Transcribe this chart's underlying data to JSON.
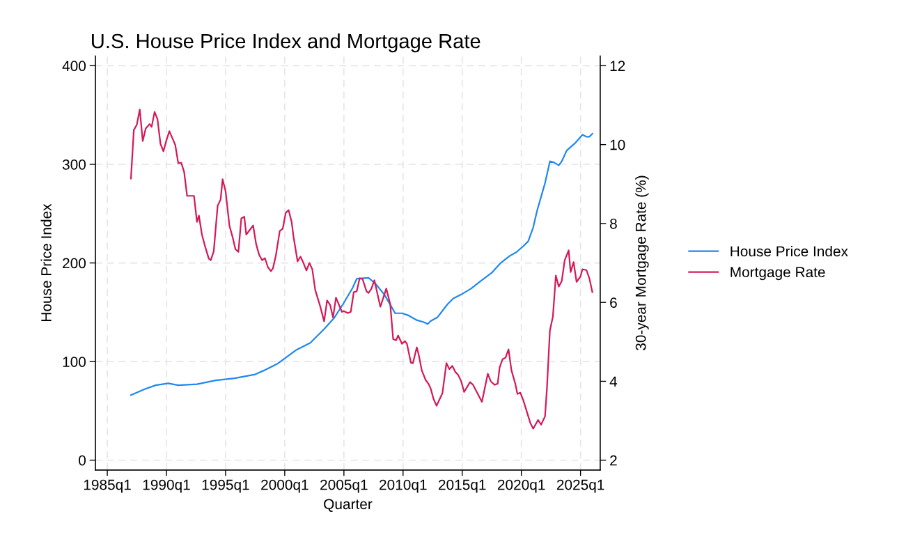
{
  "chart_data": {
    "type": "line",
    "title": "U.S. House Price Index and Mortgage Rate",
    "xlabel": "Quarter",
    "ylabel": "House Price Index",
    "y2label": "30-year Mortgage Rate (%)",
    "xlim": [
      "1984-01",
      "2026-09"
    ],
    "xticks": [
      {
        "value": "1985-01",
        "label": "1985q1"
      },
      {
        "value": "1990-01",
        "label": "1990q1"
      },
      {
        "value": "1995-01",
        "label": "1995q1"
      },
      {
        "value": "2000-01",
        "label": "2000q1"
      },
      {
        "value": "2005-01",
        "label": "2005q1"
      },
      {
        "value": "2010-01",
        "label": "2010q1"
      },
      {
        "value": "2015-01",
        "label": "2015q1"
      },
      {
        "value": "2020-01",
        "label": "2020q1"
      },
      {
        "value": "2025-01",
        "label": "2025q1"
      }
    ],
    "ylim": [
      -10,
      410
    ],
    "yticks": [
      0,
      100,
      200,
      300,
      400
    ],
    "y2lim": [
      1.75,
      12.25
    ],
    "y2ticks": [
      2,
      4,
      6,
      8,
      10,
      12
    ],
    "grid": true,
    "legend": "right",
    "line_style": "solid",
    "marker": "none",
    "series": [
      {
        "name": "House Price Index",
        "color": "#1e88f0",
        "x": [
          "1987-01",
          "1988-03",
          "1989-02",
          "1990-03",
          "1991-01",
          "1992-08",
          "1994-03",
          "1995-10",
          "1997-07",
          "1998-04",
          "1999-06",
          "2001-01",
          "2002-03",
          "2003-05",
          "2004-03",
          "2004-12",
          "2005-10",
          "2006-02",
          "2007-02",
          "2007-09",
          "2008-06",
          "2009-01",
          "2009-05",
          "2009-12",
          "2010-06",
          "2011-03",
          "2011-10",
          "2012-02",
          "2012-05",
          "2012-12",
          "2013-10",
          "2014-04",
          "2014-12",
          "2015-10",
          "2016-07",
          "2017-07",
          "2018-04",
          "2019-01",
          "2019-08",
          "2020-03",
          "2020-08",
          "2021-01",
          "2021-05",
          "2022-01",
          "2022-06",
          "2022-10",
          "2023-03",
          "2023-06",
          "2023-11",
          "2024-08",
          "2025-03",
          "2025-07",
          "2025-10",
          "2026-01"
        ],
        "values": [
          66,
          72,
          76,
          78,
          76,
          77,
          81,
          83,
          87,
          91,
          98,
          112,
          119,
          133,
          144,
          158,
          175,
          184,
          185,
          179,
          168,
          156,
          149,
          149,
          147,
          142,
          140,
          138,
          141,
          145,
          158,
          164,
          168,
          174,
          181,
          190,
          200,
          207,
          211,
          217,
          222,
          236,
          253,
          281,
          303,
          302,
          299,
          303,
          314,
          322,
          330,
          328,
          328,
          331
        ]
      },
      {
        "name": "Mortgage Rate",
        "color": "#d41a56",
        "axis": "y2",
        "x": [
          "1987-01",
          "1987-04",
          "1987-07",
          "1987-10",
          "1988-01",
          "1988-04",
          "1988-08",
          "1988-10",
          "1989-01",
          "1989-04",
          "1989-07",
          "1989-10",
          "1990-01",
          "1990-04",
          "1990-08",
          "1990-10",
          "1991-01",
          "1991-04",
          "1991-07",
          "1991-10",
          "1992-05",
          "1992-08",
          "1992-10",
          "1993-01",
          "1993-04",
          "1993-08",
          "1993-10",
          "1994-01",
          "1994-05",
          "1994-08",
          "1994-10",
          "1995-01",
          "1995-05",
          "1995-08",
          "1995-11",
          "1996-02",
          "1996-05",
          "1996-08",
          "1996-10",
          "1997-05",
          "1997-08",
          "1997-11",
          "1998-02",
          "1998-05",
          "1998-08",
          "1998-11",
          "1999-01",
          "1999-04",
          "1999-08",
          "1999-11",
          "2000-02",
          "2000-05",
          "2000-08",
          "2000-10",
          "2001-02",
          "2001-05",
          "2001-08",
          "2001-11",
          "2002-02",
          "2002-05",
          "2002-08",
          "2003-01",
          "2003-05",
          "2003-08",
          "2003-11",
          "2004-02",
          "2004-05",
          "2004-11",
          "2005-01",
          "2005-05",
          "2005-08",
          "2005-11",
          "2006-02",
          "2006-05",
          "2006-08",
          "2006-12",
          "2007-02",
          "2007-05",
          "2007-08",
          "2008-02",
          "2008-08",
          "2008-12",
          "2009-03",
          "2009-06",
          "2009-08",
          "2009-12",
          "2010-03",
          "2010-05",
          "2010-09",
          "2010-11",
          "2011-03",
          "2011-05",
          "2011-08",
          "2011-12",
          "2012-03",
          "2012-05",
          "2012-08",
          "2012-11",
          "2013-05",
          "2013-09",
          "2013-12",
          "2014-03",
          "2014-06",
          "2014-09",
          "2014-12",
          "2015-03",
          "2015-09",
          "2015-12",
          "2016-09",
          "2017-03",
          "2017-06",
          "2017-10",
          "2018-01",
          "2018-03",
          "2018-06",
          "2018-09",
          "2018-12",
          "2019-03",
          "2019-07",
          "2019-09",
          "2019-12",
          "2020-03",
          "2020-10",
          "2021-01",
          "2021-06",
          "2021-09",
          "2022-01",
          "2022-03",
          "2022-06",
          "2022-09",
          "2022-12",
          "2023-03",
          "2023-06",
          "2023-09",
          "2024-01",
          "2024-03",
          "2024-06",
          "2024-09",
          "2025-01",
          "2025-03",
          "2025-07",
          "2025-10",
          "2026-01"
        ],
        "values": [
          9.14,
          10.37,
          10.5,
          10.89,
          10.09,
          10.41,
          10.52,
          10.45,
          10.83,
          10.64,
          10.02,
          9.83,
          10.11,
          10.34,
          10.11,
          9.99,
          9.53,
          9.54,
          9.31,
          8.7,
          8.7,
          8.04,
          8.2,
          7.72,
          7.44,
          7.11,
          7.07,
          7.3,
          8.45,
          8.61,
          9.12,
          8.82,
          7.94,
          7.67,
          7.35,
          7.28,
          8.13,
          8.17,
          7.72,
          7.95,
          7.48,
          7.21,
          7.07,
          7.12,
          6.89,
          6.79,
          6.86,
          7.18,
          7.81,
          7.87,
          8.27,
          8.34,
          8.04,
          7.65,
          7.04,
          7.16,
          7.0,
          6.81,
          7.0,
          6.84,
          6.31,
          5.9,
          5.52,
          6.05,
          5.94,
          5.62,
          6.12,
          5.76,
          5.78,
          5.73,
          5.76,
          6.26,
          6.28,
          6.61,
          6.59,
          6.28,
          6.24,
          6.35,
          6.56,
          5.89,
          6.35,
          5.96,
          5.07,
          5.04,
          5.16,
          4.95,
          5.02,
          4.95,
          4.47,
          4.46,
          4.86,
          4.67,
          4.28,
          4.03,
          3.93,
          3.82,
          3.55,
          3.38,
          3.7,
          4.46,
          4.31,
          4.39,
          4.24,
          4.16,
          4.0,
          3.73,
          3.98,
          3.91,
          3.48,
          4.19,
          4.0,
          3.91,
          3.94,
          4.35,
          4.56,
          4.6,
          4.81,
          4.28,
          3.93,
          3.68,
          3.71,
          3.52,
          2.95,
          2.8,
          3.02,
          2.9,
          3.11,
          3.82,
          5.29,
          5.64,
          6.68,
          6.4,
          6.54,
          7.07,
          7.32,
          6.77,
          7.02,
          6.52,
          6.66,
          6.84,
          6.82,
          6.61,
          6.26
        ]
      }
    ]
  }
}
